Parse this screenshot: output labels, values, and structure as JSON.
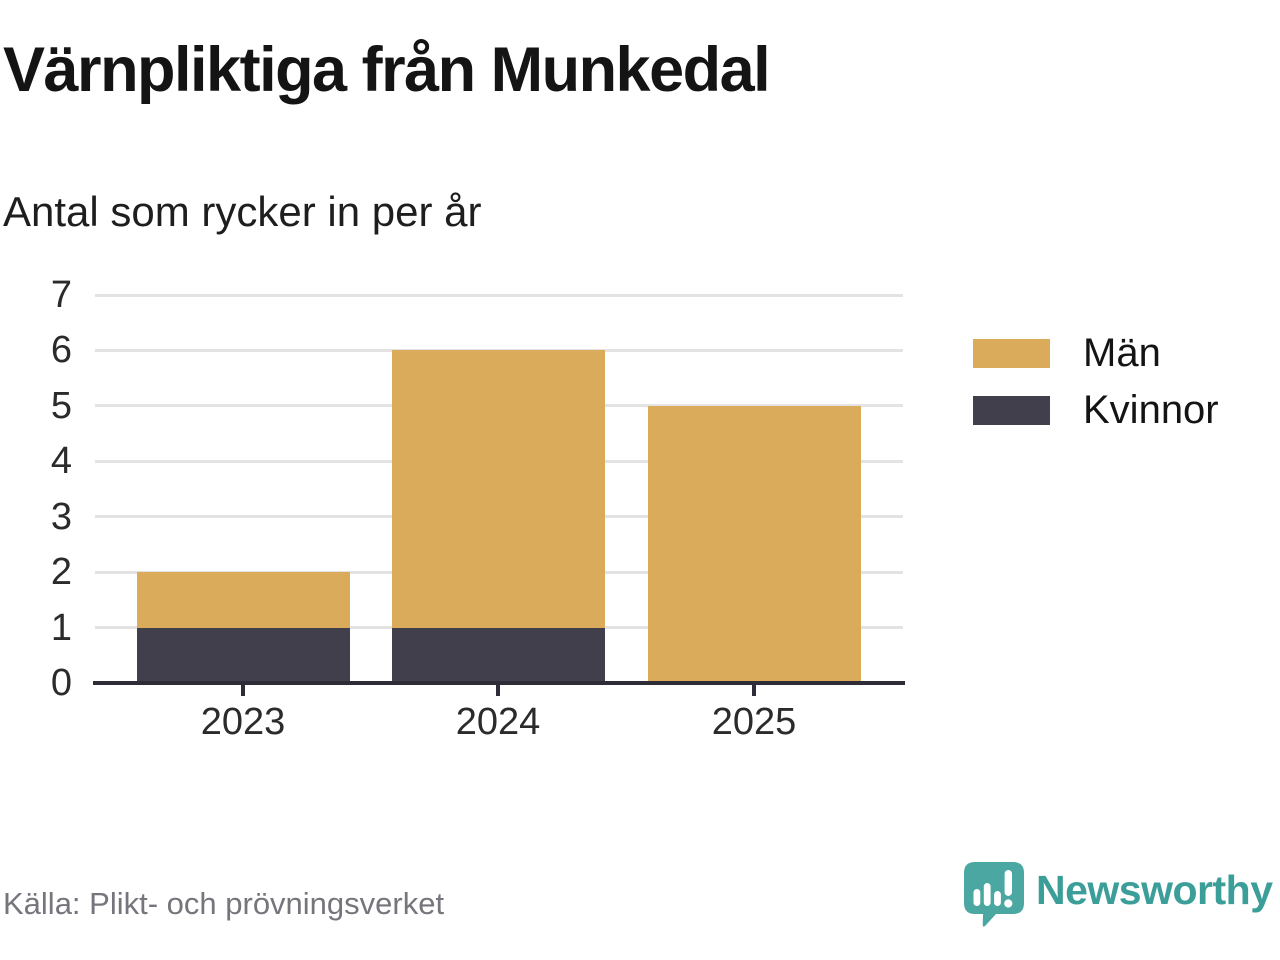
{
  "chart_data": {
    "type": "bar",
    "stacked": true,
    "title": "Värnpliktiga från Munkedal",
    "subtitle": "Antal som rycker in per år",
    "categories": [
      "2023",
      "2024",
      "2025"
    ],
    "series": [
      {
        "name": "Män",
        "color": "#D9AB5B",
        "values": [
          1,
          5,
          5
        ]
      },
      {
        "name": "Kvinnor",
        "color": "#413F4C",
        "values": [
          1,
          1,
          0
        ]
      }
    ],
    "stack_order_bottom_to_top": [
      "Kvinnor",
      "Män"
    ],
    "totals": [
      2,
      6,
      5
    ],
    "xlabel": "",
    "ylabel": "",
    "ylim": [
      0,
      7
    ],
    "yticks": [
      0,
      1,
      2,
      3,
      4,
      5,
      6,
      7
    ],
    "grid": true,
    "legend_position": "right"
  },
  "footer": {
    "source": "Källa: Plikt- och prövningsverket",
    "brand": "Newsworthy"
  },
  "colors": {
    "grid": "#E3E3E3",
    "axis": "#2E2D37",
    "tick_label": "#2b2b2b",
    "title_text": "#141414",
    "source_text": "#75757D",
    "brand_teal_text": "#3B9E99",
    "brand_teal_icon": "#4AA7A1",
    "background": "#FFFFFF"
  }
}
